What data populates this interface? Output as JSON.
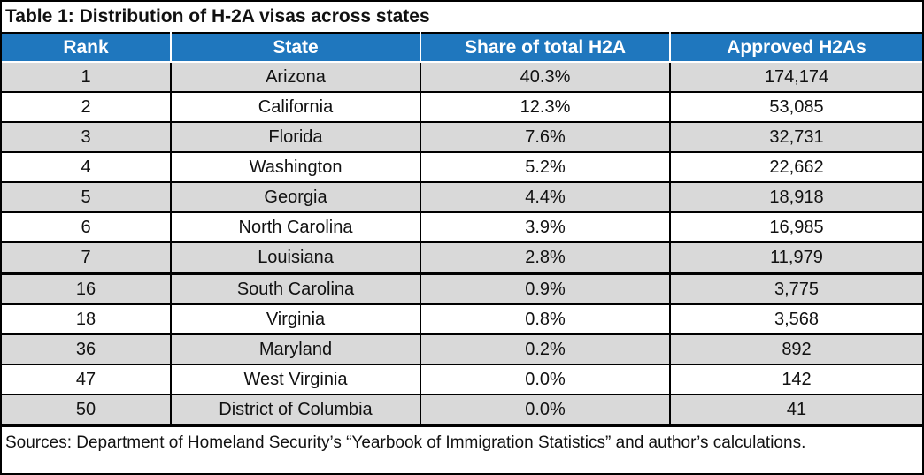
{
  "title": "Table 1: Distribution of H-2A visas across states",
  "columns": {
    "rank": "Rank",
    "state": "State",
    "share": "Share of total H2A",
    "approved": "Approved H2As"
  },
  "rows": [
    {
      "rank": "1",
      "state": "Arizona",
      "share": "40.3%",
      "approved": "174,174"
    },
    {
      "rank": "2",
      "state": "California",
      "share": "12.3%",
      "approved": "53,085"
    },
    {
      "rank": "3",
      "state": "Florida",
      "share": "7.6%",
      "approved": "32,731"
    },
    {
      "rank": "4",
      "state": "Washington",
      "share": "5.2%",
      "approved": "22,662"
    },
    {
      "rank": "5",
      "state": "Georgia",
      "share": "4.4%",
      "approved": "18,918"
    },
    {
      "rank": "6",
      "state": "North Carolina",
      "share": "3.9%",
      "approved": "16,985"
    },
    {
      "rank": "7",
      "state": "Louisiana",
      "share": "2.8%",
      "approved": "11,979"
    },
    {
      "rank": "16",
      "state": "South Carolina",
      "share": "0.9%",
      "approved": "3,775"
    },
    {
      "rank": "18",
      "state": "Virginia",
      "share": "0.8%",
      "approved": "3,568"
    },
    {
      "rank": "36",
      "state": "Maryland",
      "share": "0.2%",
      "approved": "892"
    },
    {
      "rank": "47",
      "state": "West Virginia",
      "share": "0.0%",
      "approved": "142"
    },
    {
      "rank": "50",
      "state": "District of Columbia",
      "share": "0.0%",
      "approved": "41"
    }
  ],
  "sources": "Sources: Department of Homeland Security’s “Yearbook of Immigration Statistics” and author’s calculations.",
  "colors": {
    "header_bg": "#1f77be",
    "shaded_row": "#d9d9d9",
    "plain_row": "#ffffff"
  }
}
